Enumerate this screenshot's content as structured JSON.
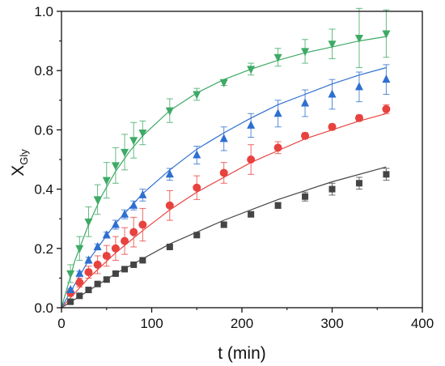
{
  "chart_data": {
    "type": "scatter",
    "xlabel": "t (min)",
    "ylabel_main": "X",
    "ylabel_sub": "Gly",
    "xlim": [
      0,
      400
    ],
    "ylim": [
      0.0,
      1.0
    ],
    "x_ticks": [
      0,
      100,
      200,
      300,
      400
    ],
    "x_tick_labels": [
      "0",
      "100",
      "200",
      "300",
      "400"
    ],
    "y_ticks": [
      0.0,
      0.2,
      0.4,
      0.6,
      0.8,
      1.0
    ],
    "y_tick_labels": [
      "0.0",
      "0.2",
      "0.4",
      "0.6",
      "0.8",
      "1.0"
    ],
    "grid": false,
    "legend": "none",
    "series": [
      {
        "marker": "square",
        "color": "#444444",
        "points": [
          {
            "x": 10,
            "y": 0.02,
            "err": 0.005
          },
          {
            "x": 20,
            "y": 0.04,
            "err": 0.005
          },
          {
            "x": 30,
            "y": 0.06,
            "err": 0.005
          },
          {
            "x": 40,
            "y": 0.08,
            "err": 0.005
          },
          {
            "x": 50,
            "y": 0.095,
            "err": 0.005
          },
          {
            "x": 60,
            "y": 0.115,
            "err": 0.005
          },
          {
            "x": 70,
            "y": 0.13,
            "err": 0.005
          },
          {
            "x": 80,
            "y": 0.145,
            "err": 0.005
          },
          {
            "x": 90,
            "y": 0.16,
            "err": 0.005
          },
          {
            "x": 120,
            "y": 0.205,
            "err": 0.005
          },
          {
            "x": 150,
            "y": 0.245,
            "err": 0.005
          },
          {
            "x": 180,
            "y": 0.28,
            "err": 0.008
          },
          {
            "x": 210,
            "y": 0.315,
            "err": 0.008
          },
          {
            "x": 240,
            "y": 0.345,
            "err": 0.01
          },
          {
            "x": 270,
            "y": 0.375,
            "err": 0.015
          },
          {
            "x": 300,
            "y": 0.4,
            "err": 0.02
          },
          {
            "x": 330,
            "y": 0.42,
            "err": 0.02
          },
          {
            "x": 360,
            "y": 0.45,
            "err": 0.02
          }
        ],
        "fit": [
          [
            0,
            0
          ],
          [
            60,
            0.115
          ],
          [
            120,
            0.215
          ],
          [
            180,
            0.295
          ],
          [
            240,
            0.365
          ],
          [
            300,
            0.425
          ],
          [
            360,
            0.475
          ]
        ]
      },
      {
        "marker": "circle",
        "color": "#e8423f",
        "points": [
          {
            "x": 10,
            "y": 0.05,
            "err": 0.01
          },
          {
            "x": 20,
            "y": 0.085,
            "err": 0.015
          },
          {
            "x": 30,
            "y": 0.12,
            "err": 0.02
          },
          {
            "x": 40,
            "y": 0.145,
            "err": 0.03
          },
          {
            "x": 50,
            "y": 0.175,
            "err": 0.035
          },
          {
            "x": 60,
            "y": 0.2,
            "err": 0.04
          },
          {
            "x": 70,
            "y": 0.225,
            "err": 0.045
          },
          {
            "x": 80,
            "y": 0.255,
            "err": 0.05
          },
          {
            "x": 90,
            "y": 0.28,
            "err": 0.055
          },
          {
            "x": 120,
            "y": 0.345,
            "err": 0.05
          },
          {
            "x": 150,
            "y": 0.405,
            "err": 0.04
          },
          {
            "x": 180,
            "y": 0.455,
            "err": 0.035
          },
          {
            "x": 210,
            "y": 0.5,
            "err": 0.05
          },
          {
            "x": 240,
            "y": 0.54,
            "err": 0.02
          },
          {
            "x": 270,
            "y": 0.58,
            "err": 0.01
          },
          {
            "x": 300,
            "y": 0.61,
            "err": 0.01
          },
          {
            "x": 330,
            "y": 0.64,
            "err": 0.01
          },
          {
            "x": 360,
            "y": 0.67,
            "err": 0.015
          }
        ],
        "fit": [
          [
            0,
            0
          ],
          [
            30,
            0.1
          ],
          [
            60,
            0.185
          ],
          [
            90,
            0.26
          ],
          [
            120,
            0.33
          ],
          [
            150,
            0.39
          ],
          [
            180,
            0.44
          ],
          [
            210,
            0.49
          ],
          [
            240,
            0.53
          ],
          [
            270,
            0.57
          ],
          [
            300,
            0.6
          ],
          [
            330,
            0.63
          ],
          [
            360,
            0.655
          ]
        ]
      },
      {
        "marker": "triangle-up",
        "color": "#2e6fd0",
        "points": [
          {
            "x": 10,
            "y": 0.06,
            "err": 0.005
          },
          {
            "x": 20,
            "y": 0.115,
            "err": 0.008
          },
          {
            "x": 30,
            "y": 0.16,
            "err": 0.01
          },
          {
            "x": 40,
            "y": 0.205,
            "err": 0.01
          },
          {
            "x": 50,
            "y": 0.245,
            "err": 0.01
          },
          {
            "x": 60,
            "y": 0.28,
            "err": 0.015
          },
          {
            "x": 70,
            "y": 0.315,
            "err": 0.015
          },
          {
            "x": 80,
            "y": 0.345,
            "err": 0.015
          },
          {
            "x": 90,
            "y": 0.38,
            "err": 0.02
          },
          {
            "x": 120,
            "y": 0.45,
            "err": 0.02
          },
          {
            "x": 150,
            "y": 0.515,
            "err": 0.03
          },
          {
            "x": 180,
            "y": 0.57,
            "err": 0.04
          },
          {
            "x": 210,
            "y": 0.615,
            "err": 0.04
          },
          {
            "x": 240,
            "y": 0.655,
            "err": 0.045
          },
          {
            "x": 270,
            "y": 0.69,
            "err": 0.045
          },
          {
            "x": 300,
            "y": 0.72,
            "err": 0.05
          },
          {
            "x": 330,
            "y": 0.745,
            "err": 0.05
          },
          {
            "x": 360,
            "y": 0.77,
            "err": 0.05
          }
        ],
        "fit": [
          [
            0,
            0
          ],
          [
            30,
            0.16
          ],
          [
            60,
            0.285
          ],
          [
            90,
            0.385
          ],
          [
            120,
            0.465
          ],
          [
            150,
            0.535
          ],
          [
            180,
            0.59
          ],
          [
            210,
            0.64
          ],
          [
            240,
            0.685
          ],
          [
            270,
            0.72
          ],
          [
            300,
            0.755
          ],
          [
            330,
            0.785
          ],
          [
            360,
            0.81
          ]
        ]
      },
      {
        "marker": "triangle-down",
        "color": "#3daa65",
        "points": [
          {
            "x": 10,
            "y": 0.115,
            "err": 0.03
          },
          {
            "x": 20,
            "y": 0.2,
            "err": 0.04
          },
          {
            "x": 30,
            "y": 0.29,
            "err": 0.05
          },
          {
            "x": 40,
            "y": 0.365,
            "err": 0.05
          },
          {
            "x": 50,
            "y": 0.43,
            "err": 0.06
          },
          {
            "x": 60,
            "y": 0.48,
            "err": 0.06
          },
          {
            "x": 70,
            "y": 0.525,
            "err": 0.06
          },
          {
            "x": 80,
            "y": 0.565,
            "err": 0.06
          },
          {
            "x": 90,
            "y": 0.59,
            "err": 0.04
          },
          {
            "x": 120,
            "y": 0.665,
            "err": 0.04
          },
          {
            "x": 150,
            "y": 0.72,
            "err": 0.02
          },
          {
            "x": 180,
            "y": 0.76,
            "err": 0.01
          },
          {
            "x": 210,
            "y": 0.805,
            "err": 0.02
          },
          {
            "x": 240,
            "y": 0.845,
            "err": 0.03
          },
          {
            "x": 270,
            "y": 0.865,
            "err": 0.04
          },
          {
            "x": 300,
            "y": 0.89,
            "err": 0.05
          },
          {
            "x": 330,
            "y": 0.91,
            "err": 0.1
          },
          {
            "x": 360,
            "y": 0.925,
            "err": 0.08
          }
        ],
        "fit": [
          [
            0,
            0
          ],
          [
            15,
            0.16
          ],
          [
            30,
            0.28
          ],
          [
            45,
            0.38
          ],
          [
            60,
            0.46
          ],
          [
            75,
            0.525
          ],
          [
            90,
            0.58
          ],
          [
            120,
            0.665
          ],
          [
            150,
            0.725
          ],
          [
            180,
            0.77
          ],
          [
            210,
            0.805
          ],
          [
            240,
            0.835
          ],
          [
            270,
            0.86
          ],
          [
            300,
            0.88
          ],
          [
            330,
            0.9
          ],
          [
            360,
            0.915
          ]
        ]
      }
    ]
  }
}
